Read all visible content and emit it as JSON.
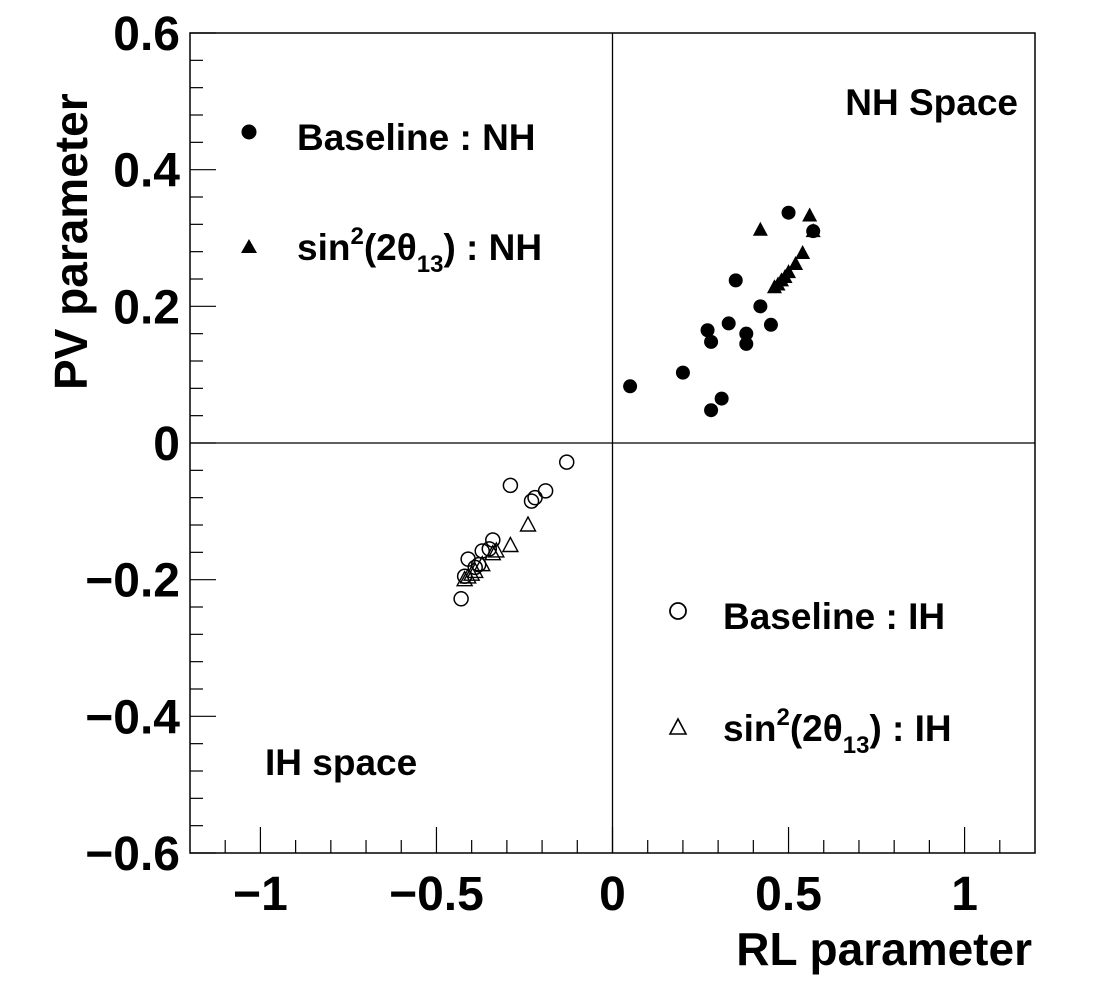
{
  "chart_data": {
    "type": "scatter",
    "title": "",
    "xlabel": "RL parameter",
    "ylabel": "PV parameter",
    "xlim": [
      -1.2,
      1.2
    ],
    "ylim": [
      -0.6,
      0.6
    ],
    "x_ticks": [
      -1,
      -0.5,
      0,
      0.5,
      1
    ],
    "x_tick_labels": [
      "−1",
      "−0.5",
      "0",
      "0.5",
      "1"
    ],
    "y_ticks": [
      -0.6,
      -0.4,
      -0.2,
      0,
      0.2,
      0.4,
      0.6
    ],
    "y_tick_labels": [
      "−0.6",
      "−0.4",
      "−0.2",
      "0",
      "0.2",
      "0.4",
      "0.6"
    ],
    "grid": false,
    "zero_lines": true,
    "series": [
      {
        "name": "Baseline : NH",
        "marker": "filled-circle",
        "color": "#000000",
        "x": [
          0.05,
          0.2,
          0.27,
          0.28,
          0.28,
          0.31,
          0.33,
          0.35,
          0.38,
          0.38,
          0.42,
          0.45,
          0.5,
          0.57
        ],
        "y": [
          0.083,
          0.103,
          0.165,
          0.148,
          0.048,
          0.065,
          0.175,
          0.238,
          0.16,
          0.145,
          0.2,
          0.173,
          0.337,
          0.31
        ]
      },
      {
        "name": "sin²(2θ₁₃) : NH",
        "marker": "filled-triangle",
        "color": "#000000",
        "x": [
          0.42,
          0.46,
          0.47,
          0.48,
          0.49,
          0.5,
          0.52,
          0.54,
          0.56,
          0.57
        ],
        "y": [
          0.312,
          0.228,
          0.232,
          0.238,
          0.243,
          0.25,
          0.262,
          0.278,
          0.333,
          0.31
        ]
      },
      {
        "name": "Baseline : IH",
        "marker": "open-circle",
        "color": "#000000",
        "x": [
          -0.13,
          -0.19,
          -0.22,
          -0.23,
          -0.29,
          -0.34,
          -0.35,
          -0.37,
          -0.38,
          -0.39,
          -0.41,
          -0.42,
          -0.43
        ],
        "y": [
          -0.028,
          -0.07,
          -0.08,
          -0.085,
          -0.062,
          -0.142,
          -0.155,
          -0.158,
          -0.178,
          -0.182,
          -0.17,
          -0.195,
          -0.228
        ]
      },
      {
        "name": "sin²(2θ₁₃) : IH",
        "marker": "open-triangle",
        "color": "#000000",
        "x": [
          -0.24,
          -0.29,
          -0.33,
          -0.34,
          -0.37,
          -0.39,
          -0.4,
          -0.41,
          -0.42
        ],
        "y": [
          -0.12,
          -0.15,
          -0.158,
          -0.162,
          -0.178,
          -0.188,
          -0.192,
          -0.196,
          -0.2
        ]
      }
    ],
    "annotations": [
      {
        "text": "NH Space",
        "x": 0.88,
        "y": 0.5
      },
      {
        "text": "IH space",
        "x": -0.88,
        "y": -0.465
      }
    ],
    "legends": [
      {
        "placement": "top-left",
        "items": [
          0,
          1
        ]
      },
      {
        "placement": "bottom-right",
        "items": [
          2,
          3
        ]
      }
    ]
  },
  "legend_text": {
    "baseline_nh": "Baseline : NH",
    "sin_nh_prefix": "sin",
    "sin_nh_sup": "2",
    "sin_nh_mid": "(2θ",
    "sin_nh_sub": "13",
    "sin_nh_suffix": ") : NH",
    "baseline_ih": "Baseline : IH",
    "sin_ih_prefix": "sin",
    "sin_ih_sup": "2",
    "sin_ih_mid": "(2θ",
    "sin_ih_sub": "13",
    "sin_ih_suffix": ") : IH"
  }
}
